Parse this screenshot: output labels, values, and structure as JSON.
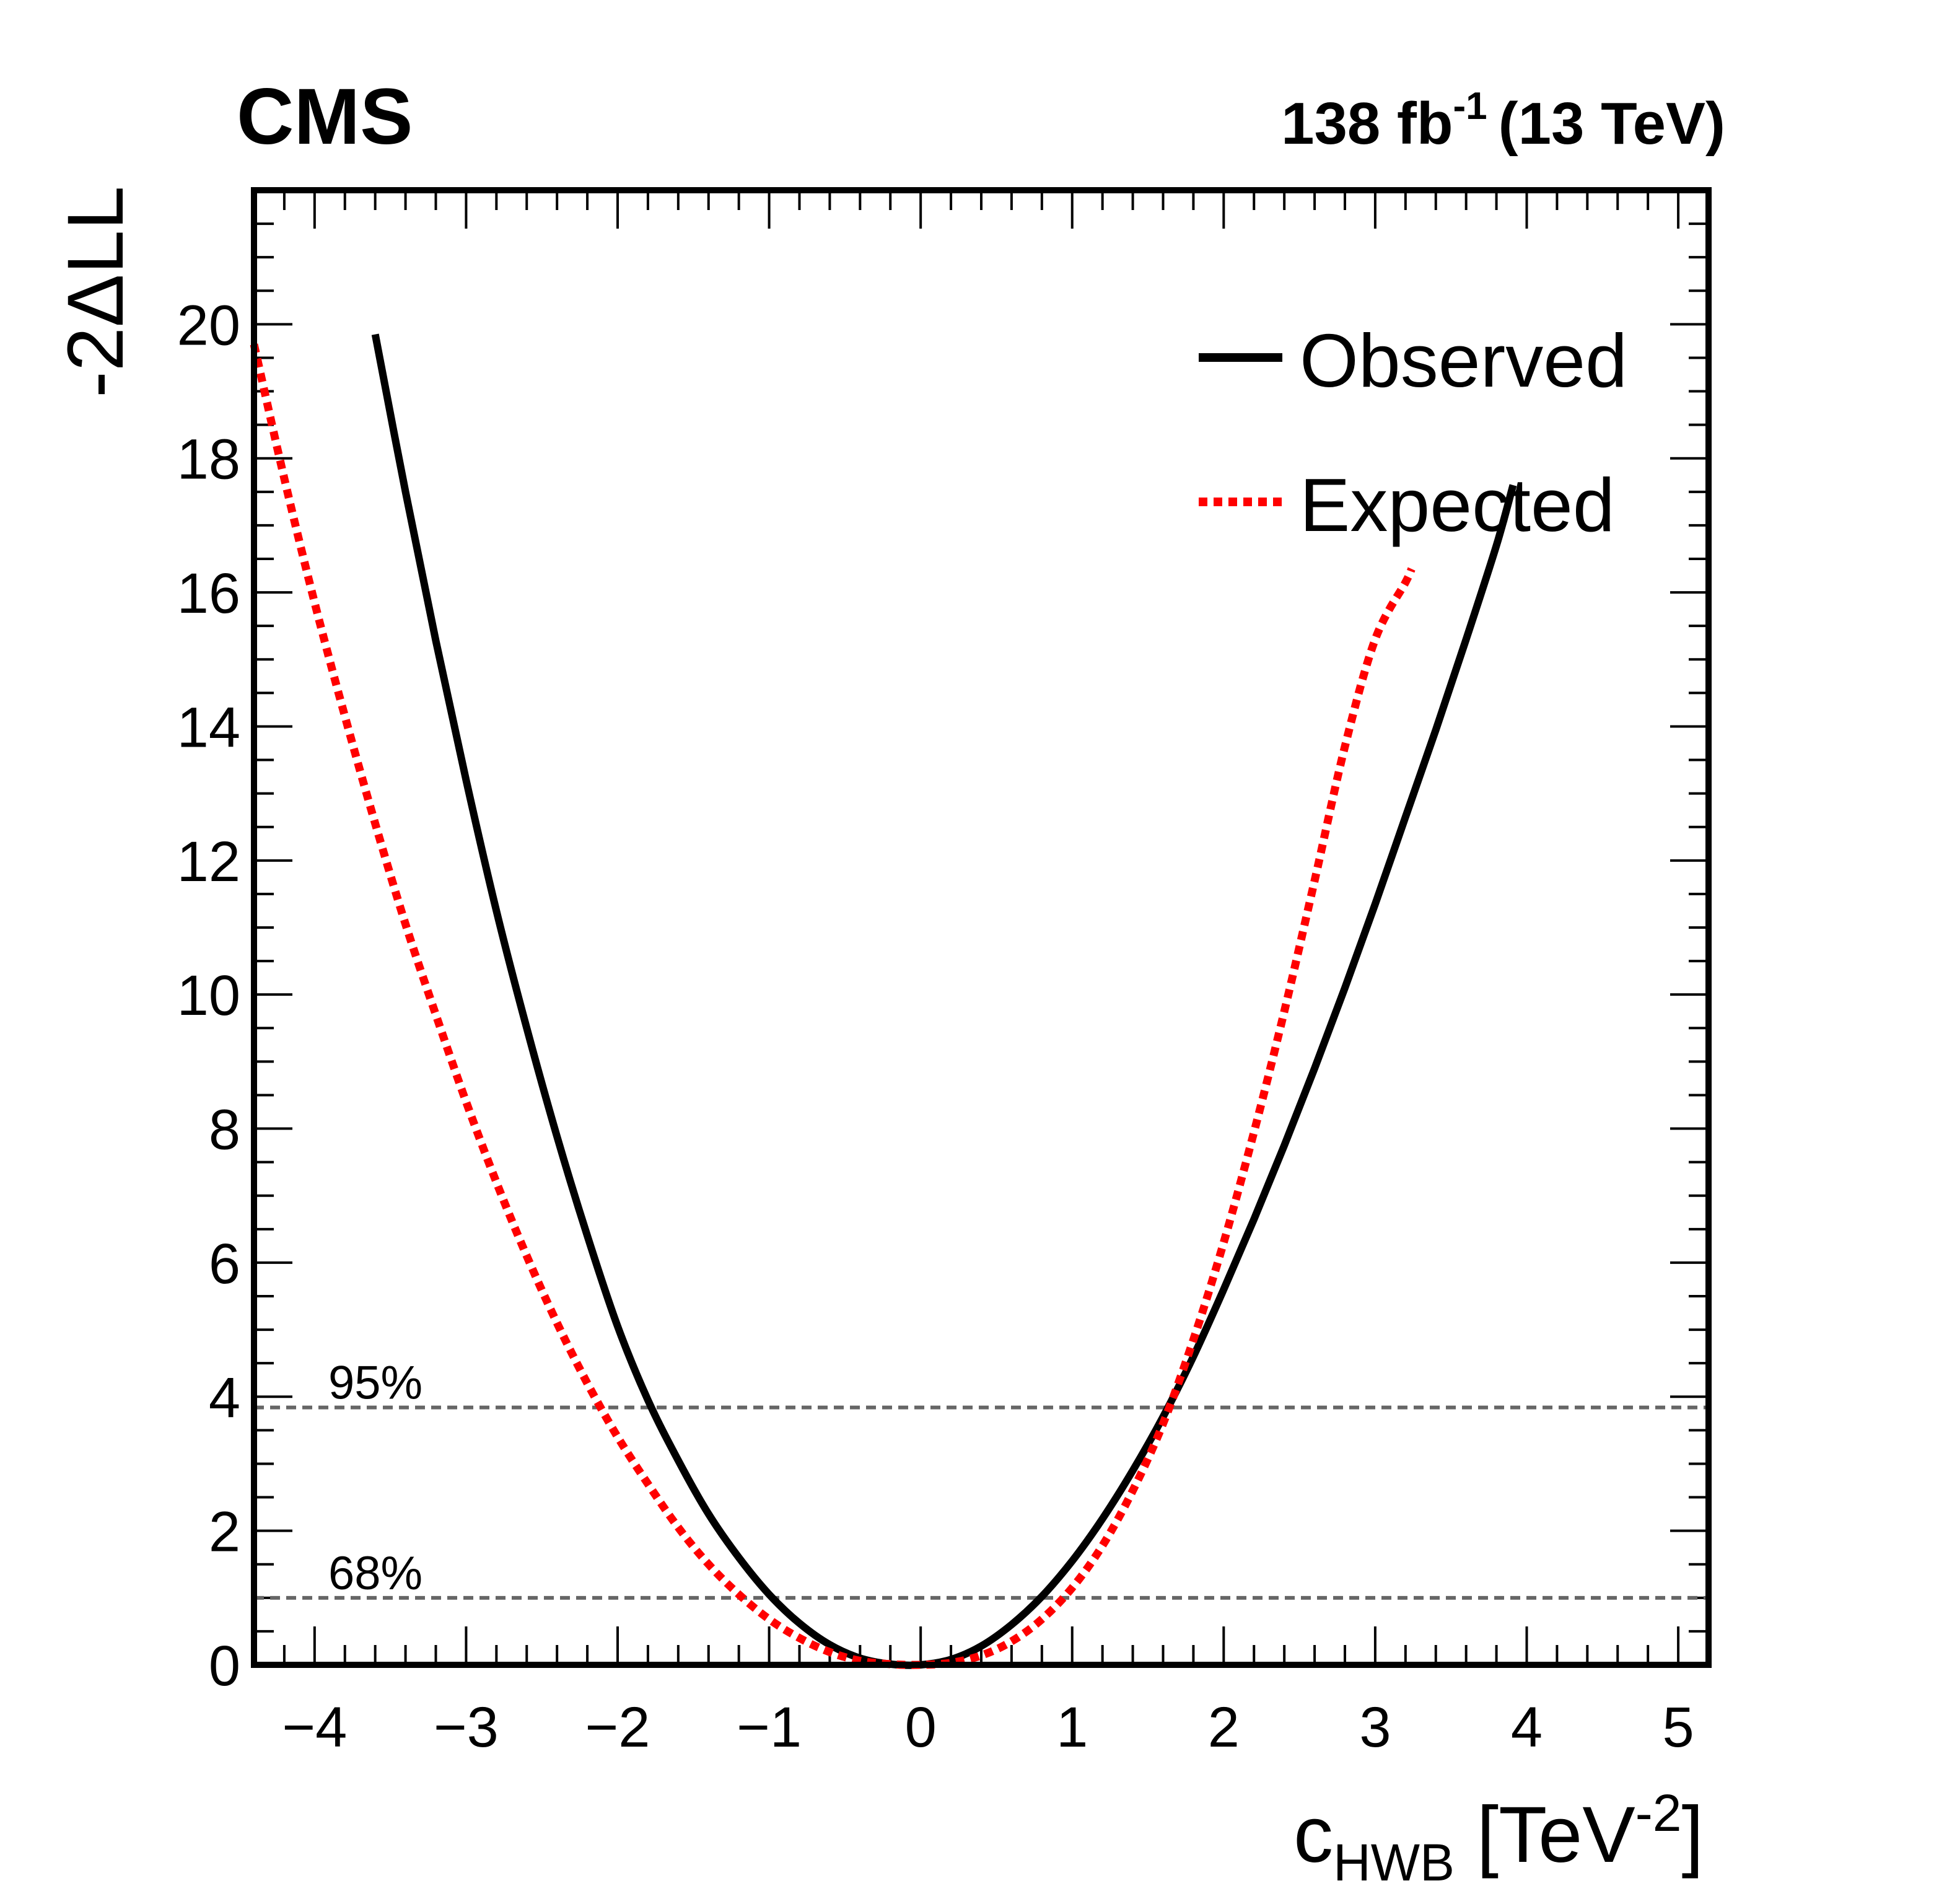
{
  "chart_data": {
    "type": "line",
    "experiment_label": "CMS",
    "lumi_label": {
      "value": "138 fb",
      "superscript": "-1",
      "energy": "(13 TeV)"
    },
    "ylabel": "-2ΔLL",
    "xlabel": {
      "main": "c",
      "subscript": "HWB",
      "unit_open": " [TeV",
      "unit_sup": "-2",
      "unit_close": "]"
    },
    "xlim": [
      -4.4,
      5.2
    ],
    "ylim": [
      0,
      22
    ],
    "x_ticks": [
      {
        "value": -4,
        "label": "−4"
      },
      {
        "value": -3,
        "label": "−3"
      },
      {
        "value": -2,
        "label": "−2"
      },
      {
        "value": -1,
        "label": "−1"
      },
      {
        "value": 0,
        "label": "0"
      },
      {
        "value": 1,
        "label": "1"
      },
      {
        "value": 2,
        "label": "2"
      },
      {
        "value": 3,
        "label": "3"
      },
      {
        "value": 4,
        "label": "4"
      },
      {
        "value": 5,
        "label": "5"
      }
    ],
    "y_ticks": [
      {
        "value": 0,
        "label": "0"
      },
      {
        "value": 2,
        "label": "2"
      },
      {
        "value": 4,
        "label": "4"
      },
      {
        "value": 6,
        "label": "6"
      },
      {
        "value": 8,
        "label": "8"
      },
      {
        "value": 10,
        "label": "10"
      },
      {
        "value": 12,
        "label": "12"
      },
      {
        "value": 14,
        "label": "14"
      },
      {
        "value": 16,
        "label": "16"
      },
      {
        "value": 18,
        "label": "18"
      },
      {
        "value": 20,
        "label": "20"
      }
    ],
    "x_minor_step": 0.2,
    "y_minor_step": 0.5,
    "reference_lines": [
      {
        "value": 3.84,
        "label": "95%"
      },
      {
        "value": 1.0,
        "label": "68%"
      }
    ],
    "series": [
      {
        "name": "Observed",
        "style": "solid",
        "color": "#000000",
        "x": [
          -3.6,
          -3.4,
          -3.2,
          -3.0,
          -2.8,
          -2.6,
          -2.4,
          -2.2,
          -2.0,
          -1.8,
          -1.6,
          -1.4,
          -1.2,
          -1.0,
          -0.8,
          -0.6,
          -0.4,
          -0.2,
          0.0,
          0.2,
          0.4,
          0.6,
          0.8,
          1.0,
          1.2,
          1.4,
          1.6,
          1.8,
          2.0,
          2.2,
          2.4,
          2.6,
          2.8,
          3.0,
          3.2,
          3.4,
          3.6,
          3.8,
          3.91
        ],
        "y": [
          19.85,
          17.5,
          15.28,
          13.2,
          11.25,
          9.5,
          7.88,
          6.4,
          5.05,
          3.95,
          3.05,
          2.25,
          1.6,
          1.05,
          0.62,
          0.3,
          0.1,
          0.01,
          0.0,
          0.08,
          0.28,
          0.6,
          1.02,
          1.55,
          2.18,
          2.9,
          3.7,
          4.6,
          5.6,
          6.65,
          7.75,
          8.9,
          10.1,
          11.35,
          12.65,
          13.95,
          15.3,
          16.7,
          17.6
        ]
      },
      {
        "name": "Expected",
        "style": "dotted",
        "color": "#ff0000",
        "x": [
          -4.4,
          -4.2,
          -4.0,
          -3.8,
          -3.6,
          -3.4,
          -3.2,
          -3.0,
          -2.8,
          -2.6,
          -2.4,
          -2.2,
          -2.0,
          -1.8,
          -1.6,
          -1.4,
          -1.2,
          -1.0,
          -0.8,
          -0.6,
          -0.4,
          -0.2,
          0.0,
          0.2,
          0.4,
          0.6,
          0.8,
          1.0,
          1.2,
          1.4,
          1.6,
          1.8,
          2.0,
          2.2,
          2.4,
          2.6,
          2.8,
          3.0,
          3.2,
          3.24
        ],
        "y": [
          19.7,
          17.7,
          15.85,
          14.15,
          12.55,
          11.05,
          9.7,
          8.4,
          7.2,
          6.1,
          5.1,
          4.2,
          3.4,
          2.7,
          2.05,
          1.5,
          1.05,
          0.68,
          0.4,
          0.19,
          0.06,
          0.01,
          0.0,
          0.03,
          0.14,
          0.35,
          0.68,
          1.15,
          1.78,
          2.6,
          3.6,
          4.85,
          6.3,
          7.95,
          9.75,
          11.7,
          13.7,
          15.3,
          16.15,
          16.35
        ]
      }
    ],
    "legend": {
      "position": "top-right",
      "entries": [
        "Observed",
        "Expected"
      ]
    }
  }
}
